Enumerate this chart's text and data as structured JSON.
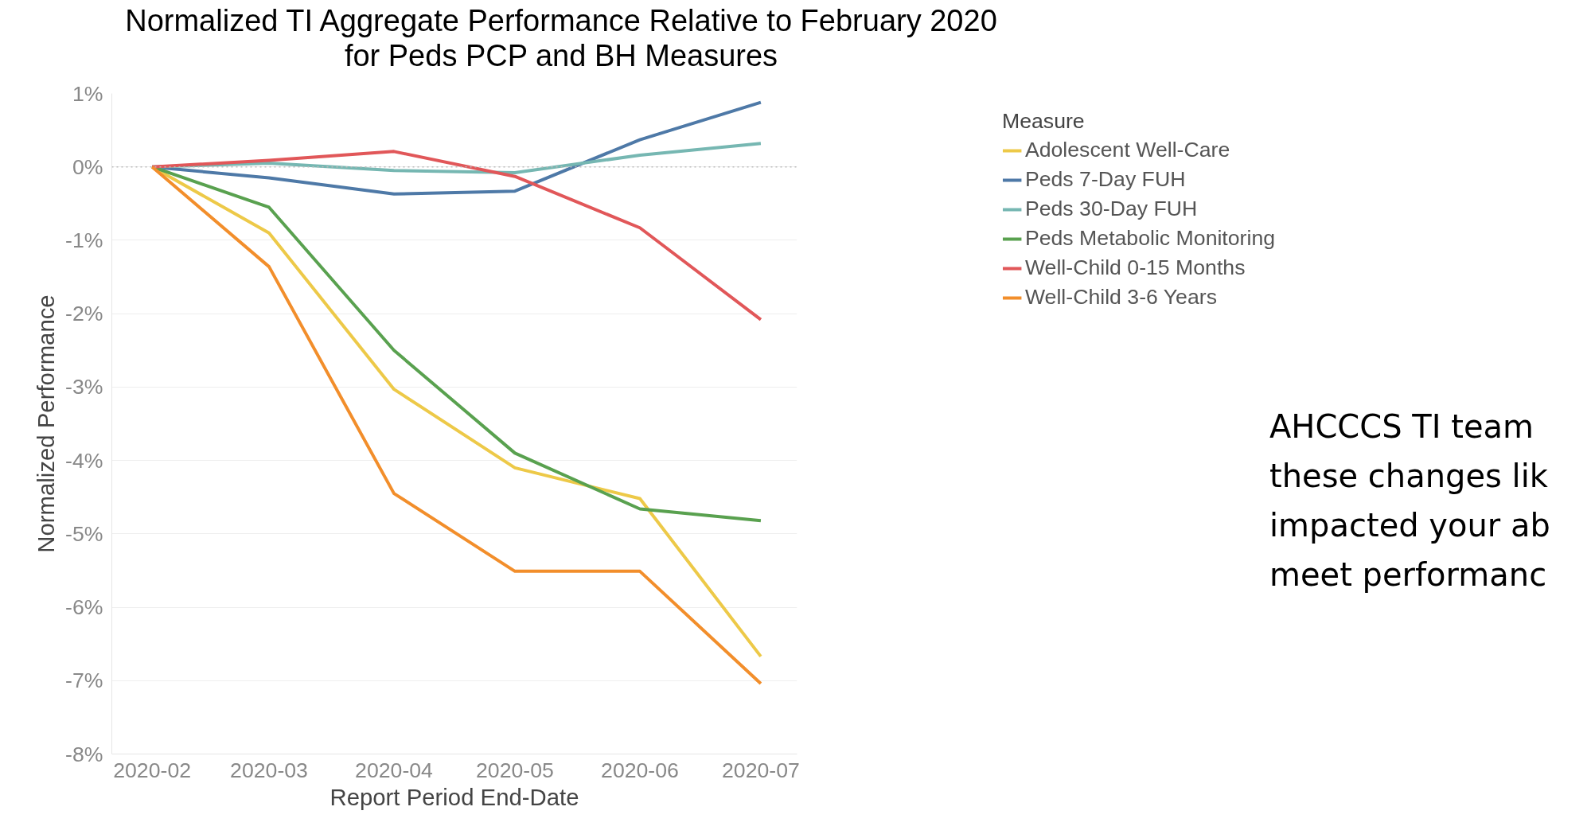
{
  "chart_data": {
    "type": "line",
    "title": "Normalized TI Aggregate Performance Relative to February 2020\nfor Peds PCP and BH Measures",
    "xlabel": "Report Period End-Date",
    "ylabel": "Normalized Performance",
    "legend_title": "Measure",
    "x": [
      "2020-02",
      "2020-03",
      "2020-04",
      "2020-05",
      "2020-06",
      "2020-07"
    ],
    "series": [
      {
        "name": "Adolescent Well-Care",
        "color": "#edc948",
        "values": [
          0,
          -0.9,
          -3.03,
          -4.1,
          -4.52,
          -6.67
        ]
      },
      {
        "name": "Peds 7-Day FUH",
        "color": "#4e79a7",
        "values": [
          0,
          -0.15,
          -0.37,
          -0.33,
          0.37,
          0.88
        ]
      },
      {
        "name": "Peds 30-Day FUH",
        "color": "#76b7b2",
        "values": [
          0,
          0.05,
          -0.05,
          -0.08,
          0.16,
          0.32
        ]
      },
      {
        "name": "Peds Metabolic Monitoring",
        "color": "#59a14f",
        "values": [
          0,
          -0.55,
          -2.5,
          -3.9,
          -4.66,
          -4.82
        ]
      },
      {
        "name": "Well-Child 0-15 Months",
        "color": "#e15759",
        "values": [
          0,
          0.09,
          0.21,
          -0.13,
          -0.83,
          -2.08
        ]
      },
      {
        "name": "Well-Child 3-6 Years",
        "color": "#f28e2b",
        "values": [
          0,
          -1.36,
          -4.45,
          -5.51,
          -5.51,
          -7.04
        ]
      }
    ],
    "xlim": [
      "2020-01-22",
      "2020-07-10"
    ],
    "xticks": [
      "2020-02",
      "2020-03",
      "2020-04",
      "2020-05",
      "2020-06",
      "2020-07"
    ],
    "ylim": [
      -8,
      1
    ],
    "yticks": [
      {
        "value": 1,
        "label": "1%"
      },
      {
        "value": 0,
        "label": "0%"
      },
      {
        "value": -1,
        "label": "-1%"
      },
      {
        "value": -2,
        "label": "-2%"
      },
      {
        "value": -3,
        "label": "-3%"
      },
      {
        "value": -4,
        "label": "-4%"
      },
      {
        "value": -5,
        "label": "-5%"
      },
      {
        "value": -6,
        "label": "-6%"
      },
      {
        "value": -7,
        "label": "-7%"
      },
      {
        "value": -8,
        "label": "-8%"
      }
    ],
    "ref_lines": [
      {
        "axis": "y",
        "value": 0,
        "color": "#bbbbbb",
        "line_style": "dotted"
      }
    ],
    "grid": "y",
    "legend": "top right",
    "line_style": "solid",
    "marker": "none",
    "annotations": [
      "AHCCCS TI team\nthese changes lik\nimpacted your ab\nmeet performanc"
    ]
  }
}
